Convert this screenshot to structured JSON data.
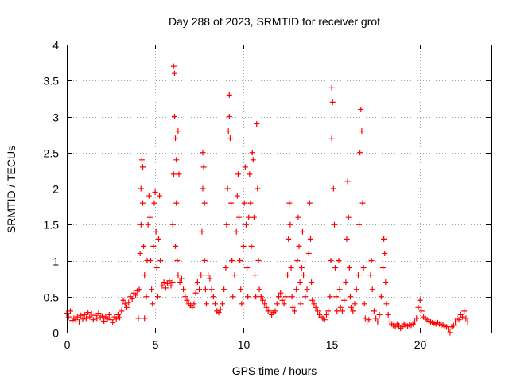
{
  "chart_data": {
    "type": "scatter",
    "title": "Day 288 of 2023, SRMTID for receiver grot",
    "xlabel": "GPS time / hours",
    "ylabel": "SRMTID / TECUs",
    "xlim": [
      0,
      24
    ],
    "ylim": [
      0,
      4
    ],
    "xticks": [
      0,
      5,
      10,
      15,
      20
    ],
    "xtick_labels": [
      "0",
      "5",
      "10",
      "15",
      "20"
    ],
    "yticks": [
      0,
      0.5,
      1,
      1.5,
      2,
      2.5,
      3,
      3.5,
      4
    ],
    "ytick_labels": [
      "0",
      "0.5",
      "1",
      "1.5",
      "2",
      "2.5",
      "3",
      "3.5",
      "4"
    ],
    "grid": true,
    "marker": "+",
    "series_color": "#ff0000",
    "series": [
      {
        "name": "grot",
        "points": [
          [
            0.0,
            0.27
          ],
          [
            0.1,
            0.22
          ],
          [
            0.2,
            0.3
          ],
          [
            0.3,
            0.17
          ],
          [
            0.4,
            0.2
          ],
          [
            0.5,
            0.18
          ],
          [
            0.6,
            0.22
          ],
          [
            0.7,
            0.15
          ],
          [
            0.8,
            0.24
          ],
          [
            0.9,
            0.19
          ],
          [
            1.0,
            0.25
          ],
          [
            1.1,
            0.2
          ],
          [
            1.2,
            0.28
          ],
          [
            1.3,
            0.22
          ],
          [
            1.4,
            0.26
          ],
          [
            1.5,
            0.18
          ],
          [
            1.6,
            0.24
          ],
          [
            1.7,
            0.2
          ],
          [
            1.8,
            0.27
          ],
          [
            1.9,
            0.21
          ],
          [
            2.0,
            0.23
          ],
          [
            2.1,
            0.16
          ],
          [
            2.2,
            0.22
          ],
          [
            2.3,
            0.19
          ],
          [
            2.4,
            0.25
          ],
          [
            2.5,
            0.18
          ],
          [
            2.6,
            0.14
          ],
          [
            2.7,
            0.22
          ],
          [
            2.8,
            0.19
          ],
          [
            2.9,
            0.25
          ],
          [
            3.0,
            0.21
          ],
          [
            3.1,
            0.3
          ],
          [
            3.2,
            0.45
          ],
          [
            3.3,
            0.4
          ],
          [
            3.4,
            0.35
          ],
          [
            3.5,
            0.42
          ],
          [
            3.6,
            0.5
          ],
          [
            3.7,
            0.47
          ],
          [
            3.8,
            0.55
          ],
          [
            3.9,
            0.52
          ],
          [
            4.0,
            0.58
          ],
          [
            4.05,
            0.2
          ],
          [
            4.1,
            0.6
          ],
          [
            4.15,
            1.1
          ],
          [
            4.2,
            1.5
          ],
          [
            4.2,
            2.0
          ],
          [
            4.25,
            2.4
          ],
          [
            4.3,
            2.3
          ],
          [
            4.3,
            1.8
          ],
          [
            4.35,
            1.2
          ],
          [
            4.4,
            0.8
          ],
          [
            4.4,
            0.2
          ],
          [
            4.5,
            0.5
          ],
          [
            4.55,
            1.0
          ],
          [
            4.6,
            1.5
          ],
          [
            4.65,
            1.9
          ],
          [
            4.7,
            1.6
          ],
          [
            4.75,
            1.0
          ],
          [
            4.8,
            0.6
          ],
          [
            4.85,
            0.4
          ],
          [
            4.9,
            1.2
          ],
          [
            4.95,
            1.8
          ],
          [
            5.0,
            1.95
          ],
          [
            5.05,
            1.4
          ],
          [
            5.1,
            0.9
          ],
          [
            5.15,
            0.5
          ],
          [
            5.2,
            1.3
          ],
          [
            5.25,
            1.9
          ],
          [
            5.3,
            1.0
          ],
          [
            5.4,
            0.65
          ],
          [
            5.5,
            0.7
          ],
          [
            5.6,
            0.62
          ],
          [
            5.7,
            0.68
          ],
          [
            5.8,
            0.72
          ],
          [
            5.9,
            0.65
          ],
          [
            6.0,
            0.7
          ],
          [
            6.0,
            1.5
          ],
          [
            6.05,
            2.2
          ],
          [
            6.05,
            3.7
          ],
          [
            6.1,
            3.6
          ],
          [
            6.1,
            3.0
          ],
          [
            6.15,
            2.7
          ],
          [
            6.15,
            1.2
          ],
          [
            6.2,
            2.4
          ],
          [
            6.2,
            1.8
          ],
          [
            6.25,
            1.0
          ],
          [
            6.3,
            2.8
          ],
          [
            6.3,
            0.8
          ],
          [
            6.35,
            2.2
          ],
          [
            6.4,
            0.7
          ],
          [
            6.5,
            0.75
          ],
          [
            6.6,
            0.6
          ],
          [
            6.7,
            0.5
          ],
          [
            6.8,
            0.45
          ],
          [
            6.9,
            0.4
          ],
          [
            7.0,
            0.38
          ],
          [
            7.1,
            0.35
          ],
          [
            7.2,
            0.4
          ],
          [
            7.3,
            0.55
          ],
          [
            7.4,
            0.7
          ],
          [
            7.5,
            0.6
          ],
          [
            7.6,
            0.8
          ],
          [
            7.65,
            1.4
          ],
          [
            7.7,
            2.0
          ],
          [
            7.7,
            2.5
          ],
          [
            7.75,
            2.3
          ],
          [
            7.8,
            1.8
          ],
          [
            7.8,
            1.0
          ],
          [
            7.85,
            0.6
          ],
          [
            7.9,
            0.4
          ],
          [
            8.0,
            0.8
          ],
          [
            8.1,
            0.75
          ],
          [
            8.2,
            0.6
          ],
          [
            8.3,
            0.5
          ],
          [
            8.4,
            0.4
          ],
          [
            8.5,
            0.3
          ],
          [
            8.6,
            0.28
          ],
          [
            8.7,
            0.32
          ],
          [
            8.8,
            0.4
          ],
          [
            8.9,
            0.6
          ],
          [
            9.0,
            0.9
          ],
          [
            9.05,
            1.5
          ],
          [
            9.1,
            2.0
          ],
          [
            9.15,
            2.8
          ],
          [
            9.2,
            3.3
          ],
          [
            9.2,
            3.0
          ],
          [
            9.25,
            2.7
          ],
          [
            9.3,
            1.8
          ],
          [
            9.35,
            1.0
          ],
          [
            9.4,
            0.5
          ],
          [
            9.5,
            0.8
          ],
          [
            9.6,
            1.4
          ],
          [
            9.65,
            1.9
          ],
          [
            9.7,
            2.2
          ],
          [
            9.75,
            1.6
          ],
          [
            9.8,
            1.0
          ],
          [
            9.85,
            0.6
          ],
          [
            9.9,
            0.4
          ],
          [
            10.0,
            1.2
          ],
          [
            10.05,
            1.8
          ],
          [
            10.1,
            2.3
          ],
          [
            10.15,
            1.5
          ],
          [
            10.2,
            0.9
          ],
          [
            10.25,
            0.5
          ],
          [
            10.3,
            1.6
          ],
          [
            10.35,
            2.2
          ],
          [
            10.4,
            1.8
          ],
          [
            10.45,
            1.2
          ],
          [
            10.5,
            2.5
          ],
          [
            10.55,
            2.4
          ],
          [
            10.6,
            1.6
          ],
          [
            10.65,
            0.8
          ],
          [
            10.7,
            0.5
          ],
          [
            10.75,
            2.9
          ],
          [
            10.8,
            2.0
          ],
          [
            10.85,
            1.0
          ],
          [
            10.9,
            0.6
          ],
          [
            11.0,
            0.5
          ],
          [
            11.1,
            0.45
          ],
          [
            11.2,
            0.4
          ],
          [
            11.3,
            0.35
          ],
          [
            11.4,
            0.3
          ],
          [
            11.5,
            0.3
          ],
          [
            11.6,
            0.25
          ],
          [
            11.7,
            0.28
          ],
          [
            11.8,
            0.3
          ],
          [
            11.9,
            0.4
          ],
          [
            12.0,
            0.5
          ],
          [
            12.1,
            0.55
          ],
          [
            12.2,
            0.45
          ],
          [
            12.3,
            0.4
          ],
          [
            12.4,
            0.5
          ],
          [
            12.5,
            0.8
          ],
          [
            12.55,
            1.3
          ],
          [
            12.6,
            1.8
          ],
          [
            12.65,
            1.5
          ],
          [
            12.7,
            0.9
          ],
          [
            12.75,
            0.5
          ],
          [
            12.8,
            0.35
          ],
          [
            12.9,
            0.3
          ],
          [
            13.0,
            0.6
          ],
          [
            13.05,
            1.0
          ],
          [
            13.1,
            1.6
          ],
          [
            13.15,
            1.2
          ],
          [
            13.2,
            0.7
          ],
          [
            13.25,
            0.4
          ],
          [
            13.3,
            0.9
          ],
          [
            13.35,
            1.4
          ],
          [
            13.4,
            0.8
          ],
          [
            13.5,
            0.5
          ],
          [
            13.6,
            0.6
          ],
          [
            13.7,
            1.1
          ],
          [
            13.75,
            1.8
          ],
          [
            13.8,
            1.3
          ],
          [
            13.85,
            0.7
          ],
          [
            13.9,
            0.45
          ],
          [
            14.0,
            0.4
          ],
          [
            14.1,
            0.35
          ],
          [
            14.2,
            0.3
          ],
          [
            14.3,
            0.25
          ],
          [
            14.4,
            0.22
          ],
          [
            14.5,
            0.2
          ],
          [
            14.6,
            0.18
          ],
          [
            14.7,
            0.25
          ],
          [
            14.8,
            0.3
          ],
          [
            14.9,
            0.5
          ],
          [
            14.95,
            1.0
          ],
          [
            15.0,
            2.7
          ],
          [
            15.0,
            3.4
          ],
          [
            15.05,
            3.2
          ],
          [
            15.1,
            2.0
          ],
          [
            15.15,
            1.5
          ],
          [
            15.2,
            0.9
          ],
          [
            15.25,
            0.5
          ],
          [
            15.3,
            0.3
          ],
          [
            15.4,
            1.0
          ],
          [
            15.45,
            0.6
          ],
          [
            15.5,
            0.35
          ],
          [
            15.6,
            0.3
          ],
          [
            15.7,
            0.45
          ],
          [
            15.8,
            0.7
          ],
          [
            15.85,
            1.3
          ],
          [
            15.9,
            2.1
          ],
          [
            15.95,
            1.6
          ],
          [
            16.0,
            0.9
          ],
          [
            16.05,
            0.5
          ],
          [
            16.1,
            0.35
          ],
          [
            16.2,
            0.3
          ],
          [
            16.3,
            0.4
          ],
          [
            16.4,
            0.6
          ],
          [
            16.5,
            0.8
          ],
          [
            16.55,
            1.5
          ],
          [
            16.6,
            2.5
          ],
          [
            16.65,
            3.1
          ],
          [
            16.7,
            2.8
          ],
          [
            16.75,
            1.8
          ],
          [
            16.8,
            0.9
          ],
          [
            16.85,
            0.4
          ],
          [
            16.9,
            0.2
          ],
          [
            17.0,
            0.15
          ],
          [
            17.1,
            0.18
          ],
          [
            17.2,
            0.8
          ],
          [
            17.25,
            1.0
          ],
          [
            17.3,
            0.6
          ],
          [
            17.4,
            0.3
          ],
          [
            17.5,
            0.2
          ],
          [
            17.6,
            0.15
          ],
          [
            17.7,
            0.25
          ],
          [
            17.8,
            0.5
          ],
          [
            17.9,
            0.9
          ],
          [
            17.95,
            1.3
          ],
          [
            18.0,
            1.1
          ],
          [
            18.05,
            0.7
          ],
          [
            18.1,
            0.4
          ],
          [
            18.2,
            0.25
          ],
          [
            18.3,
            0.15
          ],
          [
            18.4,
            0.12
          ],
          [
            18.5,
            0.1
          ],
          [
            18.6,
            0.08
          ],
          [
            18.7,
            0.12
          ],
          [
            18.8,
            0.1
          ],
          [
            18.9,
            0.06
          ],
          [
            19.0,
            0.08
          ],
          [
            19.1,
            0.12
          ],
          [
            19.2,
            0.1
          ],
          [
            19.3,
            0.09
          ],
          [
            19.4,
            0.11
          ],
          [
            19.5,
            0.1
          ],
          [
            19.6,
            0.12
          ],
          [
            19.7,
            0.15
          ],
          [
            19.8,
            0.2
          ],
          [
            19.9,
            0.35
          ],
          [
            20.0,
            0.45
          ],
          [
            20.1,
            0.3
          ],
          [
            20.2,
            0.22
          ],
          [
            20.3,
            0.2
          ],
          [
            20.4,
            0.18
          ],
          [
            20.5,
            0.16
          ],
          [
            20.6,
            0.15
          ],
          [
            20.7,
            0.14
          ],
          [
            20.8,
            0.13
          ],
          [
            20.9,
            0.12
          ],
          [
            21.0,
            0.14
          ],
          [
            21.1,
            0.12
          ],
          [
            21.2,
            0.1
          ],
          [
            21.3,
            0.11
          ],
          [
            21.4,
            0.09
          ],
          [
            21.5,
            0.08
          ],
          [
            21.6,
            0.05
          ],
          [
            21.7,
            0.0
          ],
          [
            21.8,
            0.08
          ],
          [
            21.9,
            0.1
          ],
          [
            22.0,
            0.15
          ],
          [
            22.1,
            0.2
          ],
          [
            22.2,
            0.18
          ],
          [
            22.3,
            0.25
          ],
          [
            22.4,
            0.22
          ],
          [
            22.5,
            0.3
          ],
          [
            22.6,
            0.2
          ],
          [
            22.7,
            0.15
          ]
        ]
      }
    ]
  }
}
